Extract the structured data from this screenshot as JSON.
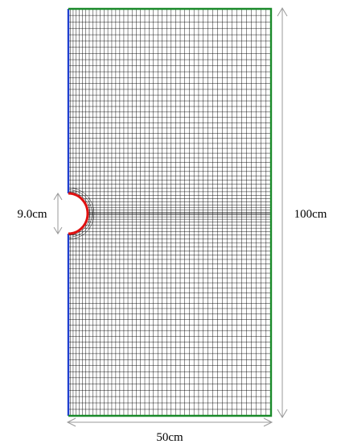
{
  "labels": {
    "hole_diameter": "9.0cm",
    "height": "100cm",
    "width": "50cm"
  },
  "colors": {
    "mesh": "#000000",
    "left_edge": "#1f3fd0",
    "hole_edge": "#e01010",
    "outer_edges": "#1a8a2a",
    "dimension_lines": "#9a9a9a"
  }
}
